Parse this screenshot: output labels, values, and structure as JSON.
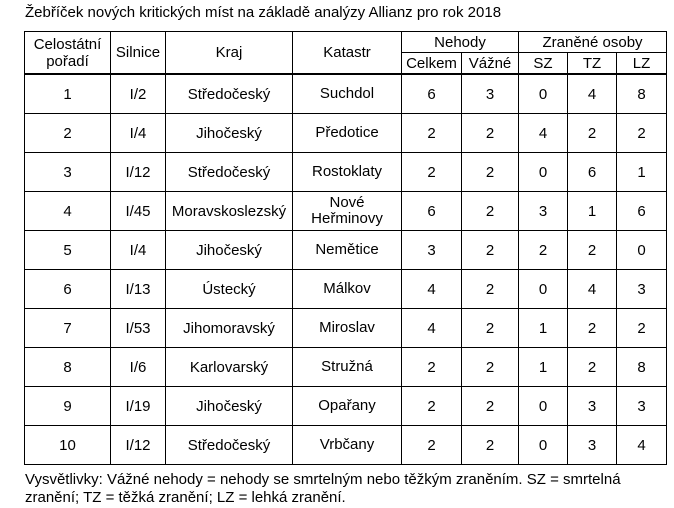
{
  "title": "Žebříček nových kritických míst na základě analýzy Allianz pro rok 2018",
  "headers": {
    "rank": "Celostátní pořadí",
    "road": "Silnice",
    "region": "Kraj",
    "cadastre": "Katastr",
    "accidents": "Nehody",
    "accidents_total": "Celkem",
    "accidents_serious": "Vážné",
    "injured": "Zraněné osoby",
    "sz": "SZ",
    "tz": "TZ",
    "lz": "LZ"
  },
  "rows": [
    {
      "rank": "1",
      "road": "I/2",
      "region": "Středočeský",
      "cadastre": "Suchdol",
      "total": "6",
      "serious": "3",
      "sz": "0",
      "tz": "4",
      "lz": "8"
    },
    {
      "rank": "2",
      "road": "I/4",
      "region": "Jihočeský",
      "cadastre": "Předotice",
      "total": "2",
      "serious": "2",
      "sz": "4",
      "tz": "2",
      "lz": "2"
    },
    {
      "rank": "3",
      "road": "I/12",
      "region": "Středočeský",
      "cadastre": "Rostoklaty",
      "total": "2",
      "serious": "2",
      "sz": "0",
      "tz": "6",
      "lz": "1"
    },
    {
      "rank": "4",
      "road": "I/45",
      "region": "Moravskoslezský",
      "cadastre": "Nové Heřminovy",
      "total": "6",
      "serious": "2",
      "sz": "3",
      "tz": "1",
      "lz": "6"
    },
    {
      "rank": "5",
      "road": "I/4",
      "region": "Jihočeský",
      "cadastre": "Nemětice",
      "total": "3",
      "serious": "2",
      "sz": "2",
      "tz": "2",
      "lz": "0"
    },
    {
      "rank": "6",
      "road": "I/13",
      "region": "Ústecký",
      "cadastre": "Málkov",
      "total": "4",
      "serious": "2",
      "sz": "0",
      "tz": "4",
      "lz": "3"
    },
    {
      "rank": "7",
      "road": "I/53",
      "region": "Jihomoravský",
      "cadastre": "Miroslav",
      "total": "4",
      "serious": "2",
      "sz": "1",
      "tz": "2",
      "lz": "2"
    },
    {
      "rank": "8",
      "road": "I/6",
      "region": "Karlovarský",
      "cadastre": "Stružná",
      "total": "2",
      "serious": "2",
      "sz": "1",
      "tz": "2",
      "lz": "8"
    },
    {
      "rank": "9",
      "road": "I/19",
      "region": "Jihočeský",
      "cadastre": "Opařany",
      "total": "2",
      "serious": "2",
      "sz": "0",
      "tz": "3",
      "lz": "3"
    },
    {
      "rank": "10",
      "road": "I/12",
      "region": "Středočeský",
      "cadastre": "Vrbčany",
      "total": "2",
      "serious": "2",
      "sz": "0",
      "tz": "3",
      "lz": "4"
    }
  ],
  "legend": "Vysvětlivky: Vážné nehody = nehody se smrtelným nebo těžkým zraněním. SZ = smrtelná zranění; TZ = těžká zranění; LZ = lehká zranění."
}
